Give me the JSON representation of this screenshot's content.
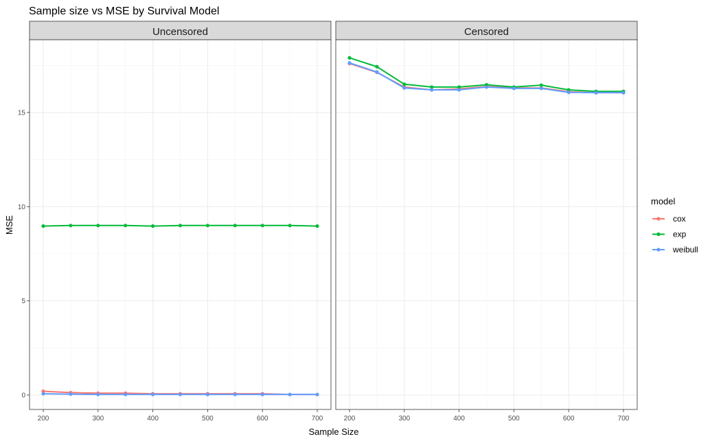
{
  "chart_data": {
    "type": "line",
    "title": "Sample size vs MSE by Survival Model",
    "xlabel": "Sample Size",
    "ylabel": "MSE",
    "x_ticks": [
      200,
      300,
      400,
      500,
      600,
      700
    ],
    "x_tick_labels": [
      "200",
      "300",
      "400",
      "500",
      "600",
      "700"
    ],
    "y_ticks": [
      0,
      5,
      10,
      15
    ],
    "y_tick_labels": [
      "0",
      "5",
      "10",
      "15"
    ],
    "xlim": [
      200,
      700
    ],
    "ylim": [
      0,
      18
    ],
    "grid": true,
    "legend": {
      "title": "model",
      "position": "right",
      "items": [
        {
          "label": "cox",
          "color": "#F8766D"
        },
        {
          "label": "exp",
          "color": "#00BA38"
        },
        {
          "label": "weibull",
          "color": "#619CFF"
        }
      ]
    },
    "panels": [
      {
        "label": "Uncensored",
        "x": [
          200,
          250,
          300,
          350,
          400,
          450,
          500,
          550,
          600,
          650,
          700
        ],
        "series": [
          {
            "name": "cox",
            "color": "#F8766D",
            "values": [
              0.2,
              0.13,
              0.1,
              0.1,
              0.07,
              0.07,
              0.07,
              0.07,
              0.07,
              0.03,
              0.03
            ]
          },
          {
            "name": "exp",
            "color": "#00BA38",
            "values": [
              8.97,
              9.0,
              9.0,
              9.0,
              8.97,
              9.0,
              9.0,
              9.0,
              9.0,
              9.0,
              8.97
            ]
          },
          {
            "name": "weibull",
            "color": "#619CFF",
            "values": [
              0.07,
              0.05,
              0.03,
              0.03,
              0.03,
              0.03,
              0.03,
              0.03,
              0.03,
              0.03,
              0.03
            ]
          }
        ]
      },
      {
        "label": "Censored",
        "x": [
          200,
          250,
          300,
          350,
          400,
          450,
          500,
          550,
          600,
          650,
          700
        ],
        "series": [
          {
            "name": "cox",
            "color": "#F8766D",
            "values": [
              17.6,
              17.13,
              16.35,
              16.2,
              16.25,
              16.38,
              16.3,
              16.3,
              16.1,
              16.05,
              16.05
            ]
          },
          {
            "name": "exp",
            "color": "#00BA38",
            "values": [
              17.9,
              17.43,
              16.5,
              16.35,
              16.35,
              16.47,
              16.35,
              16.45,
              16.2,
              16.12,
              16.12
            ]
          },
          {
            "name": "weibull",
            "color": "#619CFF",
            "values": [
              17.63,
              17.15,
              16.3,
              16.2,
              16.2,
              16.35,
              16.28,
              16.28,
              16.07,
              16.05,
              16.05
            ]
          }
        ]
      }
    ]
  }
}
